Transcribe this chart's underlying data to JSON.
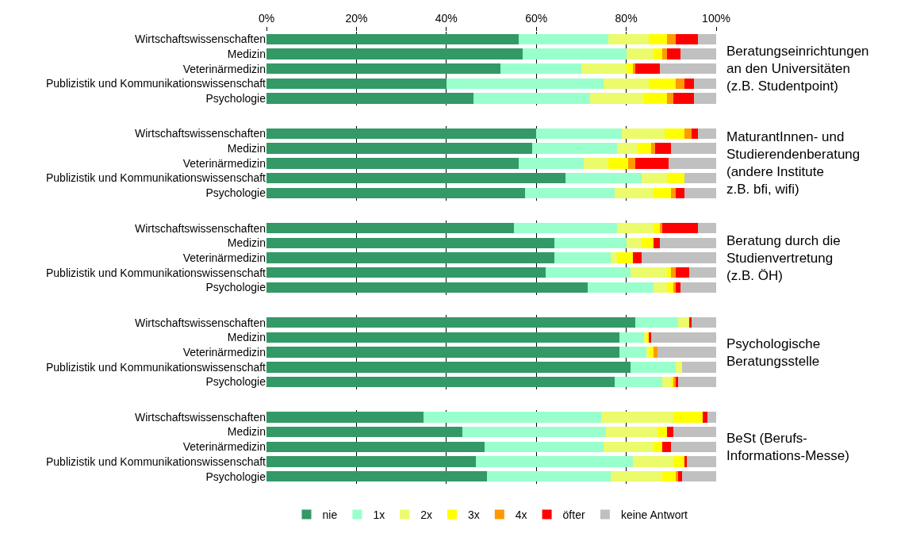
{
  "chart_data": [
    {
      "type": "bar",
      "orientation": "horizontal",
      "stacked": true,
      "categories": [
        "Wirtschaftswissenschaften",
        "Medizin",
        "Veterinärmedizin",
        "Publizistik und Kommunikationswissenschaft",
        "Psychologie"
      ],
      "xlim": [
        0,
        100
      ],
      "xticks": [
        {
          "value": 0,
          "label": "0%"
        },
        {
          "value": 20,
          "label": "20%"
        },
        {
          "value": 40,
          "label": "40%"
        },
        {
          "value": 60,
          "label": "60%"
        },
        {
          "value": 80,
          "label": "80%"
        },
        {
          "value": 100,
          "label": "100%"
        }
      ],
      "grid": "x",
      "legend": "bottom",
      "annotations": [
        "Beratungseinrichtungen\nan den Universitäten\n(z.B. Studentpoint)"
      ],
      "series": [
        {
          "name": "nie",
          "color": "#339966",
          "values": [
            56,
            57,
            52,
            40,
            46
          ]
        },
        {
          "name": "1x",
          "color": "#99ffcc",
          "values": [
            20,
            23,
            18,
            35,
            26
          ]
        },
        {
          "name": "2x",
          "color": "#ebfb6b",
          "values": [
            9,
            6,
            10,
            10,
            12
          ]
        },
        {
          "name": "3x",
          "color": "#ffff00",
          "values": [
            4,
            2,
            1.5,
            6,
            5
          ]
        },
        {
          "name": "4x",
          "color": "#ff9900",
          "values": [
            2,
            1,
            0.5,
            2,
            1.5
          ]
        },
        {
          "name": "öfter",
          "color": "#ff0000",
          "values": [
            5,
            3,
            5.5,
            2,
            4.5
          ]
        },
        {
          "name": "keine Antwort",
          "color": "#c0c0c0",
          "values": [
            4,
            8,
            12.5,
            5,
            5
          ]
        }
      ]
    },
    {
      "type": "bar",
      "orientation": "horizontal",
      "stacked": true,
      "categories": [
        "Wirtschaftswissenschaften",
        "Medizin",
        "Veterinärmedizin",
        "Publizistik und Kommunikationswissenschaft",
        "Psychologie"
      ],
      "xlim": [
        0,
        100
      ],
      "xticks": [
        {
          "value": 0,
          "label": null
        },
        {
          "value": 20,
          "label": null
        },
        {
          "value": 40,
          "label": null
        },
        {
          "value": 60,
          "label": null
        },
        {
          "value": 80,
          "label": null
        },
        {
          "value": 100,
          "label": null
        }
      ],
      "grid": "x",
      "tick_labels": "y",
      "annotations": [
        "MaturantInnen- und\nStudierendenberatung\n(andere Institute\nz.B. bfi, wifi)"
      ],
      "series": [
        {
          "color": "#339966",
          "values": [
            60,
            59,
            56,
            66.5,
            57.5
          ]
        },
        {
          "color": "#99ffcc",
          "values": [
            19,
            19,
            14.5,
            17,
            20
          ]
        },
        {
          "color": "#ebfb6b",
          "values": [
            9.5,
            4.5,
            5.5,
            5.5,
            8.5
          ]
        },
        {
          "color": "#ffff00",
          "values": [
            4.5,
            3,
            4.5,
            4,
            4
          ]
        },
        {
          "color": "#ff9900",
          "values": [
            1.5,
            1,
            1.5,
            0,
            1
          ]
        },
        {
          "color": "#ff0000",
          "values": [
            1.5,
            3.5,
            7.5,
            0,
            2
          ]
        },
        {
          "color": "#c0c0c0",
          "values": [
            4,
            10,
            10.5,
            7,
            7
          ]
        }
      ]
    },
    {
      "type": "bar",
      "orientation": "horizontal",
      "stacked": true,
      "categories": [
        "Wirtschaftswissenschaften",
        "Medizin",
        "Veterinärmedizin",
        "Publizistik und Kommunikationswissenschaft",
        "Psychologie"
      ],
      "xlim": [
        0,
        100
      ],
      "xticks": [
        {
          "value": 0,
          "label": null
        },
        {
          "value": 20,
          "label": null
        },
        {
          "value": 40,
          "label": null
        },
        {
          "value": 60,
          "label": null
        },
        {
          "value": 80,
          "label": null
        },
        {
          "value": 100,
          "label": null
        }
      ],
      "grid": "x",
      "tick_labels": "y",
      "annotations": [
        "Beratung durch die\nStudienvertretung\n(z.B. ÖH)"
      ],
      "series": [
        {
          "color": "#339966",
          "values": [
            55,
            64,
            64,
            62,
            71.5
          ]
        },
        {
          "color": "#99ffcc",
          "values": [
            23,
            16,
            12.5,
            19,
            14.5
          ]
        },
        {
          "color": "#ebfb6b",
          "values": [
            8,
            3.5,
            1.5,
            8,
            3
          ]
        },
        {
          "color": "#ffff00",
          "values": [
            1.5,
            2.5,
            3.5,
            1,
            1.5
          ]
        },
        {
          "color": "#ff9900",
          "values": [
            0.5,
            0,
            0,
            1,
            0.5
          ]
        },
        {
          "color": "#ff0000",
          "values": [
            8,
            1.5,
            2,
            3,
            1
          ]
        },
        {
          "color": "#c0c0c0",
          "values": [
            4,
            12.5,
            16.5,
            6,
            8
          ]
        }
      ]
    },
    {
      "type": "bar",
      "orientation": "horizontal",
      "stacked": true,
      "categories": [
        "Wirtschaftswissenschaften",
        "Medizin",
        "Veterinärmedizin",
        "Publizistik und Kommunikationswissenschaft",
        "Psychologie"
      ],
      "xlim": [
        0,
        100
      ],
      "xticks": [
        {
          "value": 0,
          "label": null
        },
        {
          "value": 20,
          "label": null
        },
        {
          "value": 40,
          "label": null
        },
        {
          "value": 60,
          "label": null
        },
        {
          "value": 80,
          "label": null
        },
        {
          "value": 100,
          "label": null
        }
      ],
      "grid": "x",
      "tick_labels": "y",
      "annotations": [
        "Psychologische\nBeratungsstelle"
      ],
      "series": [
        {
          "color": "#339966",
          "values": [
            82,
            78.5,
            78.5,
            81,
            77.5
          ]
        },
        {
          "color": "#99ffcc",
          "values": [
            9.5,
            5.5,
            6,
            10,
            10.5
          ]
        },
        {
          "color": "#ebfb6b",
          "values": [
            2.5,
            0.5,
            0.5,
            1.5,
            2
          ]
        },
        {
          "color": "#ffff00",
          "values": [
            0,
            0.5,
            1,
            0,
            0.5
          ]
        },
        {
          "color": "#ff9900",
          "values": [
            0,
            0,
            1,
            0,
            0.5
          ]
        },
        {
          "color": "#ff0000",
          "values": [
            0.5,
            0.5,
            0,
            0,
            0.5
          ]
        },
        {
          "color": "#c0c0c0",
          "values": [
            5.5,
            14.5,
            13,
            7.5,
            8.5
          ]
        }
      ]
    },
    {
      "type": "bar",
      "orientation": "horizontal",
      "stacked": true,
      "categories": [
        "Wirtschaftswissenschaften",
        "Medizin",
        "Veterinärmedizin",
        "Publizistik und Kommunikationswissenschaft",
        "Psychologie"
      ],
      "xlim": [
        0,
        100
      ],
      "xticks": [
        {
          "value": 0,
          "label": null
        },
        {
          "value": 20,
          "label": null
        },
        {
          "value": 40,
          "label": null
        },
        {
          "value": 60,
          "label": null
        },
        {
          "value": 80,
          "label": null
        },
        {
          "value": 100,
          "label": null
        }
      ],
      "grid": "x",
      "tick_labels": "y",
      "annotations": [
        "BeSt (Berufs-\nInformations-Messe)"
      ],
      "series": [
        {
          "color": "#339966",
          "values": [
            35,
            43.5,
            48.5,
            46.5,
            49
          ]
        },
        {
          "color": "#99ffcc",
          "values": [
            39.5,
            32,
            26.5,
            35,
            27.5
          ]
        },
        {
          "color": "#ebfb6b",
          "values": [
            16,
            11.5,
            11,
            9,
            11.5
          ]
        },
        {
          "color": "#ffff00",
          "values": [
            6.5,
            2,
            2,
            2.5,
            3
          ]
        },
        {
          "color": "#ff9900",
          "values": [
            0,
            0,
            0,
            0,
            0.5
          ]
        },
        {
          "color": "#ff0000",
          "values": [
            1,
            1.5,
            2,
            0.5,
            1
          ]
        },
        {
          "color": "#c0c0c0",
          "values": [
            2,
            9.5,
            10,
            6.5,
            7.5
          ]
        }
      ]
    }
  ]
}
